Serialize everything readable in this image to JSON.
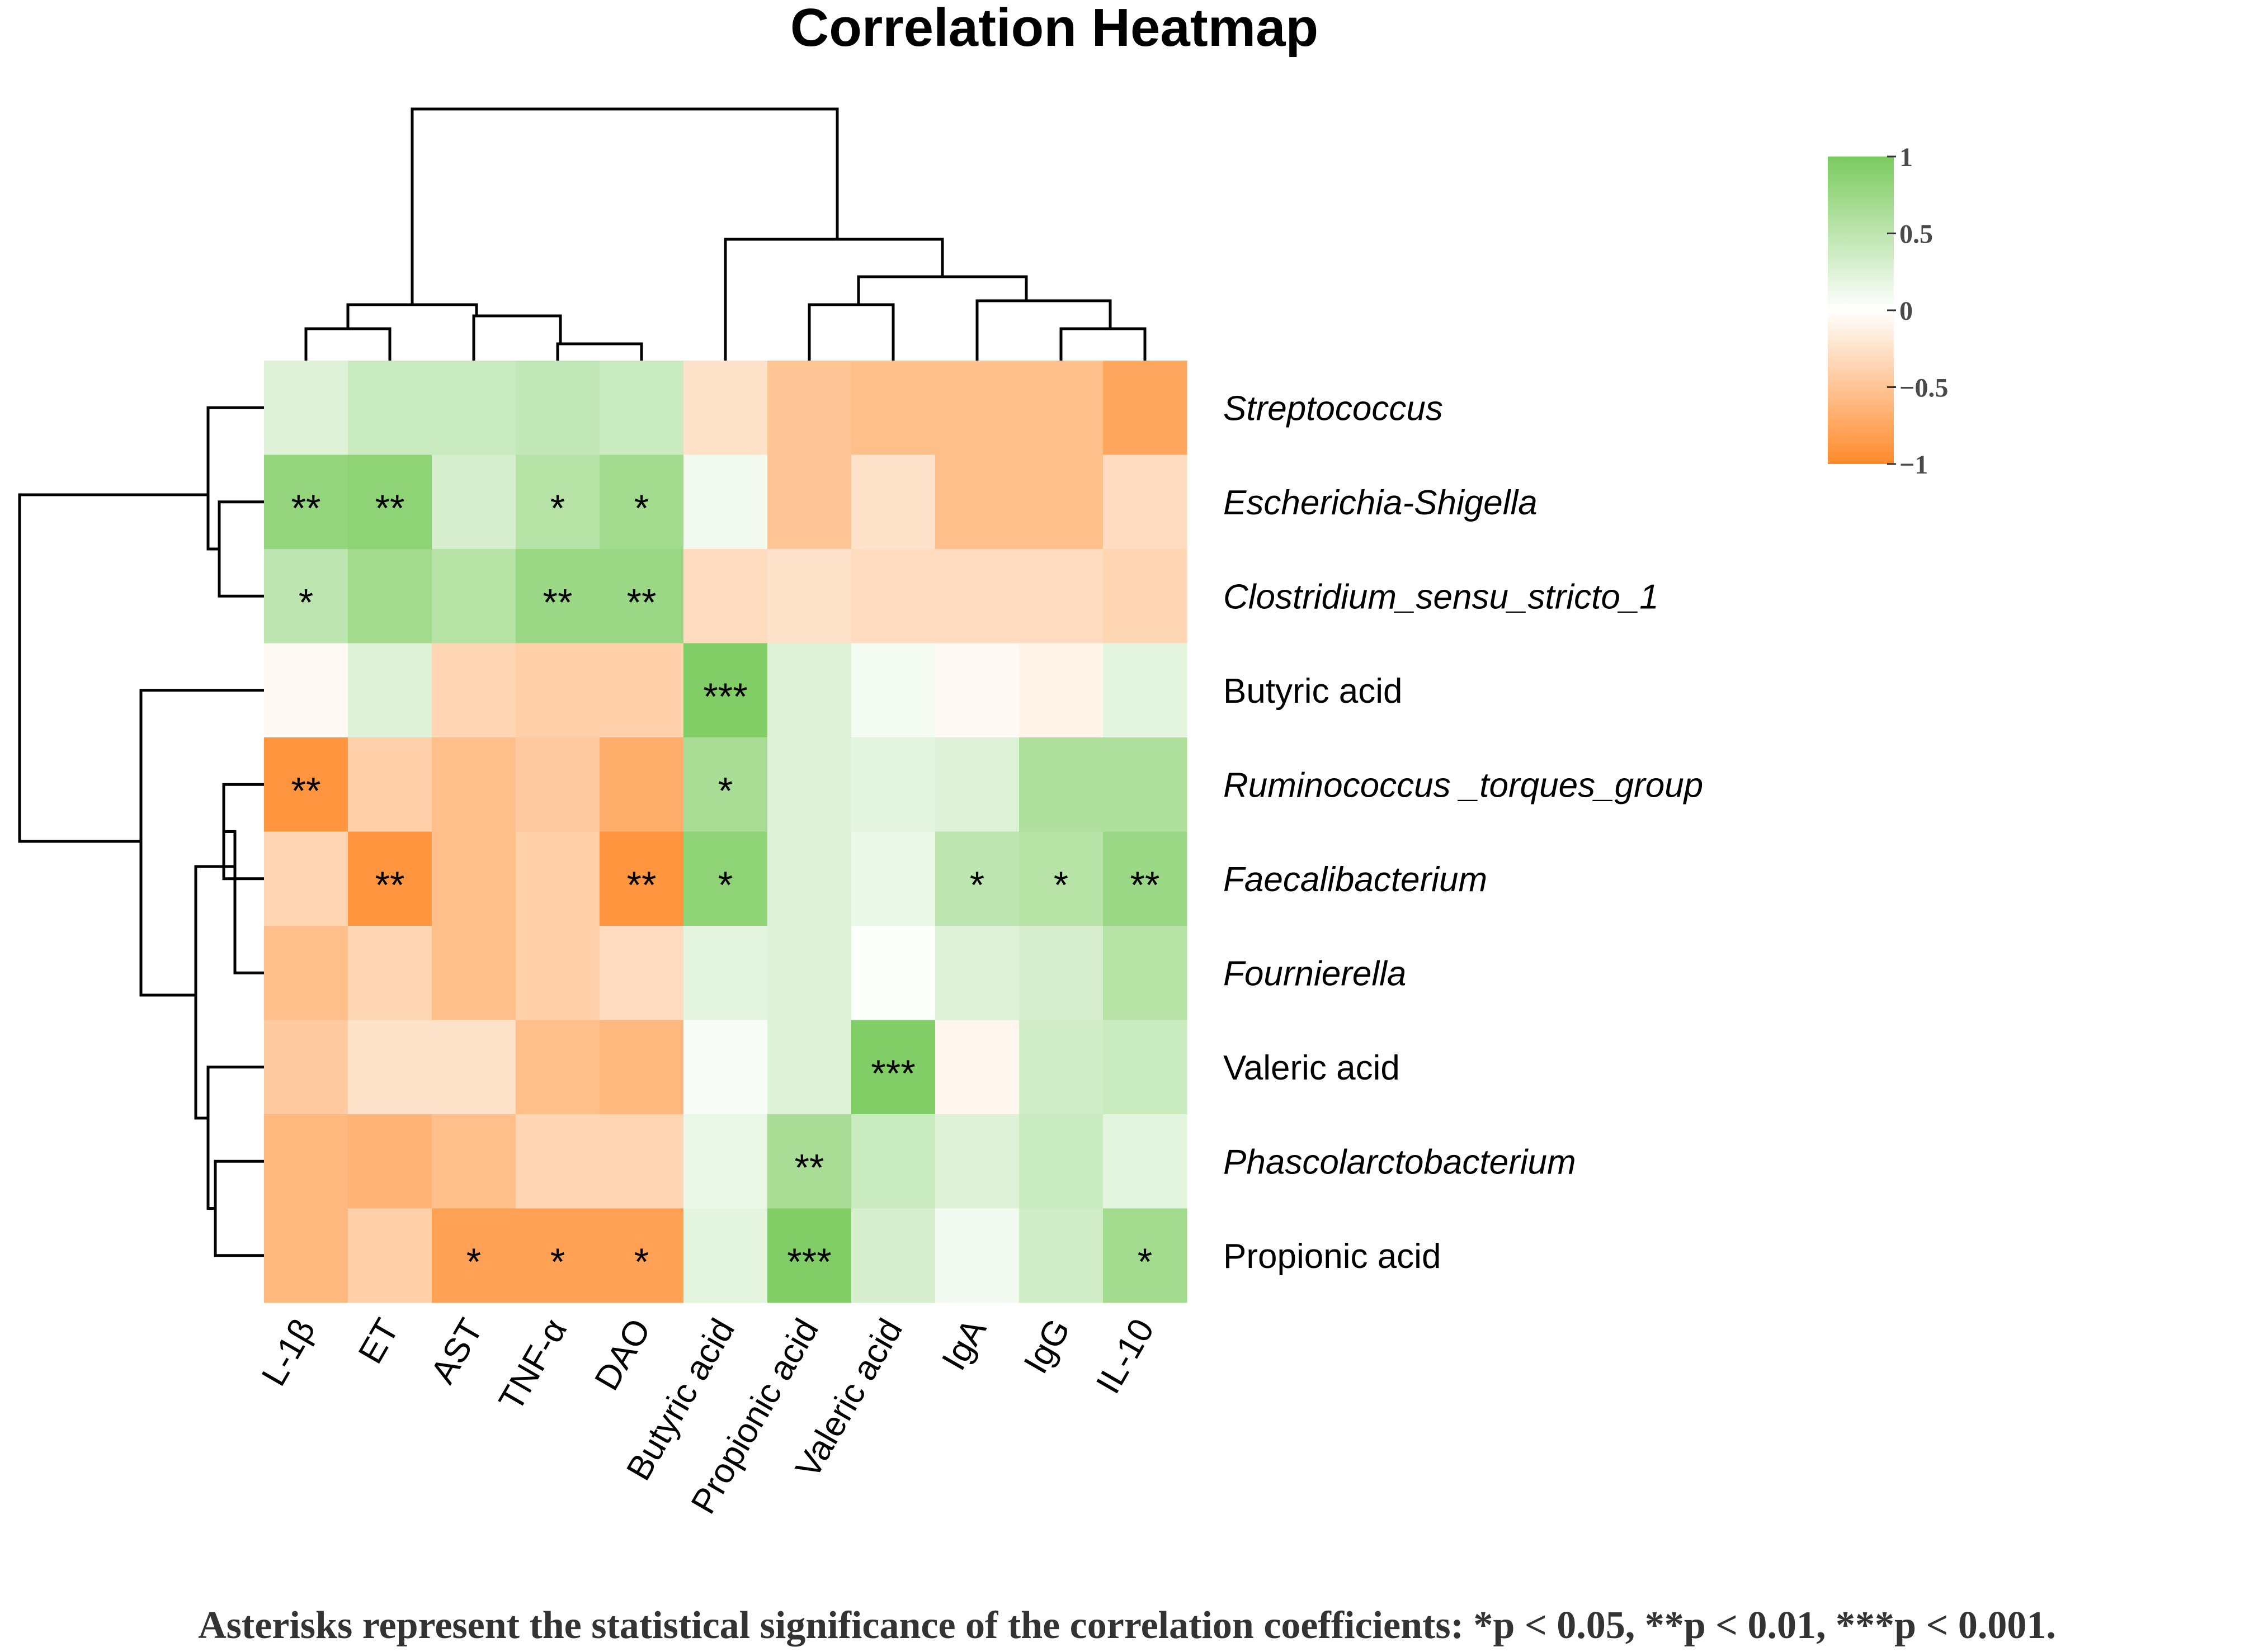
{
  "chart_data": {
    "type": "heatmap",
    "title": "Correlation Heatmap",
    "columns": [
      "L-1β",
      "ET",
      "AST",
      "TNF-α",
      "DAO",
      "Butyric acid",
      "Propionic acid",
      "Valeric acid",
      "IgA",
      "IgG",
      "IL-10"
    ],
    "rows": [
      {
        "label": "Streptococcus",
        "italic": true
      },
      {
        "label": "Escherichia-Shigella",
        "italic": true
      },
      {
        "label": "Clostridium_sensu_stricto_1",
        "italic": true
      },
      {
        "label": "Butyric acid",
        "italic": false
      },
      {
        "label": "Ruminococcus _torques_group",
        "italic": true
      },
      {
        "label": "Faecalibacterium",
        "italic": true
      },
      {
        "label": "Fournierella",
        "italic": true
      },
      {
        "label": "Valeric acid",
        "italic": false
      },
      {
        "label": "Phascolarctobacterium",
        "italic": true
      },
      {
        "label": "Propionic acid",
        "italic": false
      }
    ],
    "values": [
      [
        0.25,
        0.4,
        0.4,
        0.45,
        0.4,
        -0.25,
        -0.5,
        -0.55,
        -0.55,
        -0.55,
        -0.75
      ],
      [
        0.8,
        0.85,
        0.3,
        0.55,
        0.7,
        0.1,
        -0.5,
        -0.25,
        -0.55,
        -0.55,
        -0.3
      ],
      [
        0.5,
        0.7,
        0.55,
        0.75,
        0.75,
        -0.3,
        -0.25,
        -0.3,
        -0.3,
        -0.3,
        -0.35
      ],
      [
        -0.05,
        0.25,
        -0.35,
        -0.4,
        -0.4,
        0.95,
        0.25,
        0.08,
        -0.05,
        -0.1,
        0.2
      ],
      [
        -0.9,
        -0.4,
        -0.55,
        -0.45,
        -0.7,
        0.65,
        0.25,
        0.2,
        0.25,
        0.6,
        0.6
      ],
      [
        -0.35,
        -0.9,
        -0.55,
        -0.4,
        -0.9,
        0.85,
        0.25,
        0.15,
        0.5,
        0.55,
        0.75
      ],
      [
        -0.55,
        -0.35,
        -0.55,
        -0.4,
        -0.3,
        0.2,
        0.25,
        0.02,
        0.25,
        0.3,
        0.55
      ],
      [
        -0.45,
        -0.25,
        -0.25,
        -0.55,
        -0.6,
        0.05,
        0.25,
        0.95,
        -0.08,
        0.35,
        0.4
      ],
      [
        -0.6,
        -0.65,
        -0.55,
        -0.35,
        -0.35,
        0.15,
        0.65,
        0.4,
        0.25,
        0.4,
        0.2
      ],
      [
        -0.6,
        -0.4,
        -0.8,
        -0.8,
        -0.8,
        0.2,
        0.95,
        0.3,
        0.1,
        0.35,
        0.7
      ]
    ],
    "significance": [
      [
        "",
        "",
        "",
        "",
        "",
        "",
        "",
        "",
        "",
        "",
        ""
      ],
      [
        "**",
        "**",
        "",
        "*",
        "*",
        "",
        "",
        "",
        "",
        "",
        ""
      ],
      [
        "*",
        "",
        "",
        "**",
        "**",
        "",
        "",
        "",
        "",
        "",
        ""
      ],
      [
        "",
        "",
        "",
        "",
        "",
        "***",
        "",
        "",
        "",
        "",
        ""
      ],
      [
        "**",
        "",
        "",
        "",
        "",
        "*",
        "",
        "",
        "",
        "",
        ""
      ],
      [
        "",
        "**",
        "",
        "",
        "**",
        "*",
        "",
        "",
        "*",
        "*",
        "**"
      ],
      [
        "",
        "",
        "",
        "",
        "",
        "",
        "",
        "",
        "",
        "",
        ""
      ],
      [
        "",
        "",
        "",
        "",
        "",
        "",
        "",
        "***",
        "",
        "",
        ""
      ],
      [
        "",
        "",
        "",
        "",
        "",
        "",
        "**",
        "",
        "",
        "",
        ""
      ],
      [
        "",
        "",
        "*",
        "*",
        "*",
        "",
        "***",
        "",
        "",
        "",
        "*"
      ]
    ],
    "scale": {
      "min": -1,
      "max": 1,
      "ticks": [
        1,
        0.5,
        0,
        -0.5,
        -1
      ],
      "tick_labels": [
        "1",
        "0.5",
        "0",
        "−0.5",
        "−1"
      ]
    },
    "colors": {
      "high": "#7acb5e",
      "mid": "#ffffff",
      "low": "#ff8a2a"
    },
    "footnote": "Asterisks represent the statistical significance of the correlation coefficients: *p < 0.05, **p < 0.01, ***p < 0.001."
  }
}
